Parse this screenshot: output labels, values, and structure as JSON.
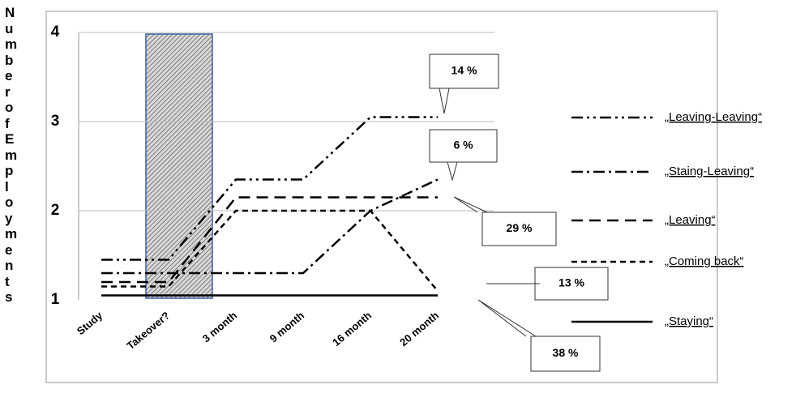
{
  "chart_data": {
    "type": "line",
    "y_axis_title": "Number of Employments",
    "categories": [
      "Study",
      "Takeover?",
      "3 month",
      "9 month",
      "16 month",
      "20 month"
    ],
    "series": [
      {
        "name": "„Leaving-Leaving“",
        "color": "#000000",
        "dash": "14 5 3 5 3 5",
        "values": [
          1.45,
          1.45,
          2.35,
          2.35,
          3.05,
          3.05
        ]
      },
      {
        "name": "„Staing-Leaving“",
        "color": "#000000",
        "dash": "14 5 3 5",
        "values": [
          1.3,
          1.3,
          1.3,
          1.3,
          2.0,
          2.35
        ]
      },
      {
        "name": "„Leaving“",
        "color": "#000000",
        "dash": "14 8",
        "values": [
          1.2,
          1.2,
          2.15,
          2.15,
          2.15,
          2.15
        ]
      },
      {
        "name": "„Coming back“",
        "color": "#000000",
        "dash": "7 5",
        "values": [
          1.15,
          1.15,
          2.0,
          2.0,
          2.0,
          1.1
        ]
      },
      {
        "name": "„Staying“",
        "color": "#000000",
        "dash": "none",
        "values": [
          1.05,
          1.05,
          1.05,
          1.05,
          1.05,
          1.05
        ]
      }
    ],
    "annotations": [
      "14 %",
      "6 %",
      "29 %",
      "13 %",
      "38 %"
    ],
    "ylim": [
      1,
      4
    ],
    "yticks": [
      1,
      2,
      3,
      4
    ],
    "grid": true
  }
}
